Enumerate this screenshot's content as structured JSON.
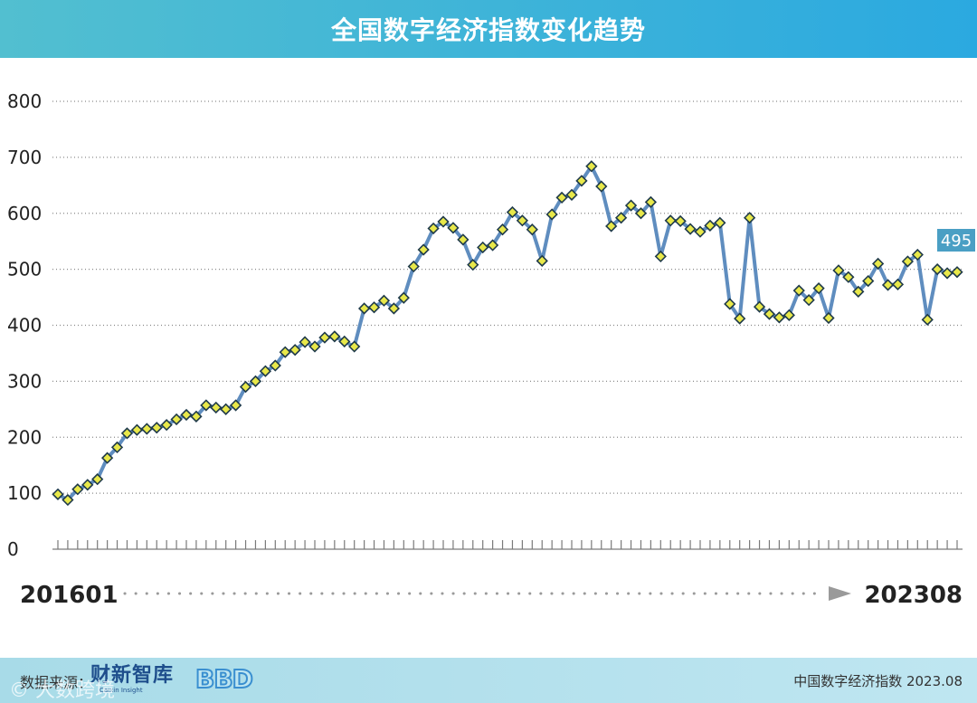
{
  "title": "全国数字经济指数变化趋势",
  "chart_data": {
    "type": "line",
    "title": "全国数字经济指数变化趋势",
    "x_start": "201601",
    "x_end": "202308",
    "ylim": [
      0,
      800
    ],
    "yticks": [
      "0",
      "100",
      "200",
      "300",
      "400",
      "500",
      "600",
      "700",
      "800"
    ],
    "grid": true,
    "last_value_label": "495",
    "series": [
      {
        "values": [
          98,
          88,
          107,
          115,
          125,
          163,
          182,
          207,
          213,
          215,
          217,
          222,
          232,
          240,
          237,
          257,
          253,
          250,
          257,
          290,
          300,
          318,
          328,
          352,
          356,
          370,
          362,
          378,
          380,
          371,
          362,
          430,
          432,
          444,
          430,
          449,
          505,
          535,
          573,
          585,
          574,
          553,
          508,
          539,
          543,
          571,
          602,
          587,
          571,
          515,
          598,
          628,
          633,
          658,
          684,
          648,
          577,
          592,
          614,
          600,
          620,
          523,
          587,
          586,
          572,
          567,
          578,
          583,
          438,
          412,
          592,
          433,
          420,
          414,
          418,
          462,
          445,
          466,
          413,
          498,
          486,
          460,
          479,
          510,
          472,
          473,
          514,
          526,
          410,
          500,
          493,
          495
        ]
      }
    ],
    "color_line": "#5f8dbf",
    "color_marker": "#e8e84a"
  },
  "footer": {
    "source_label": "数据来源：",
    "logo1_text": "财新智库",
    "logo1_sub": "Caixin Insight",
    "logo2_text": "BBD",
    "note": "中国数字经济指数 2023.08",
    "watermark": "© 大数跨境"
  }
}
